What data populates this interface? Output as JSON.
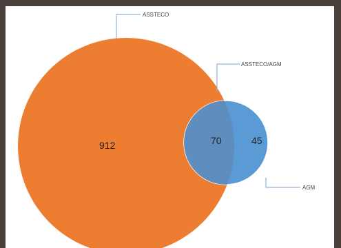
{
  "diagram": {
    "type": "venn",
    "sets": [
      {
        "name": "ASSTECO",
        "only_count": "912",
        "color": "#ed7d31"
      },
      {
        "name": "AGM",
        "only_count": "45",
        "color": "#5b9bd5"
      }
    ],
    "intersection": {
      "name": "ASSTECO/AGM",
      "count": "70",
      "color": "#5f8dbd"
    }
  }
}
